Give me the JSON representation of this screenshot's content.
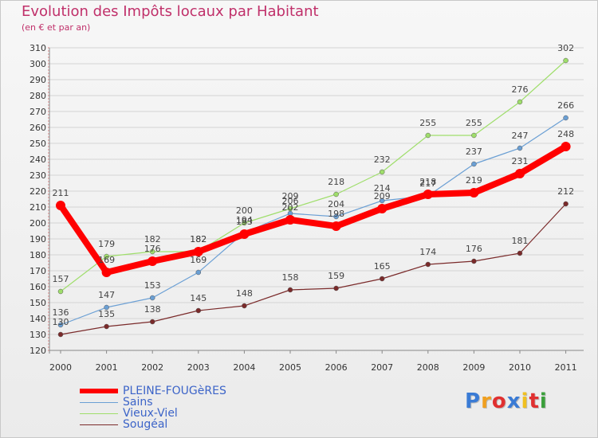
{
  "header": {
    "title": "Evolution des Impôts locaux par Habitant",
    "subtitle": "(en € et par an)"
  },
  "chart_data": {
    "type": "line",
    "title": "Evolution des Impôts locaux par Habitant",
    "subtitle": "(en € et par an)",
    "xlabel": "",
    "ylabel": "",
    "x": [
      "2000",
      "2001",
      "2002",
      "2003",
      "2004",
      "2005",
      "2006",
      "2007",
      "2008",
      "2009",
      "2010",
      "2011"
    ],
    "ylim": [
      120,
      310
    ],
    "yticks": [
      120,
      130,
      140,
      150,
      160,
      170,
      180,
      190,
      200,
      210,
      220,
      230,
      240,
      250,
      260,
      270,
      280,
      290,
      300,
      310
    ],
    "grid": "horizontal",
    "legend_position": "bottom-left",
    "series": [
      {
        "name": "PLEINE-FOUGèRES",
        "color": "#ff0000",
        "values": [
          211,
          169,
          176,
          182,
          193,
          202,
          198,
          209,
          218,
          219,
          231,
          248
        ]
      },
      {
        "name": "Sains",
        "color": "#6a9fd4",
        "values": [
          136,
          147,
          153,
          169,
          194,
          206,
          204,
          214,
          217,
          237,
          247,
          266
        ]
      },
      {
        "name": "Vieux-Viel",
        "color": "#9fde6b",
        "values": [
          157,
          179,
          182,
          182,
          200,
          209,
          218,
          232,
          255,
          255,
          276,
          302
        ]
      },
      {
        "name": "Sougéal",
        "color": "#7a2a2a",
        "values": [
          130,
          135,
          138,
          145,
          148,
          158,
          159,
          165,
          174,
          176,
          181,
          212
        ]
      }
    ]
  },
  "logo": {
    "letters": [
      "P",
      "r",
      "o",
      "x",
      "i",
      "t",
      "i"
    ],
    "colors": [
      "#3a7bd5",
      "#f0a020",
      "#e03030",
      "#3a7bd5",
      "#f0c020",
      "#e03030",
      "#3a9f3a"
    ]
  }
}
